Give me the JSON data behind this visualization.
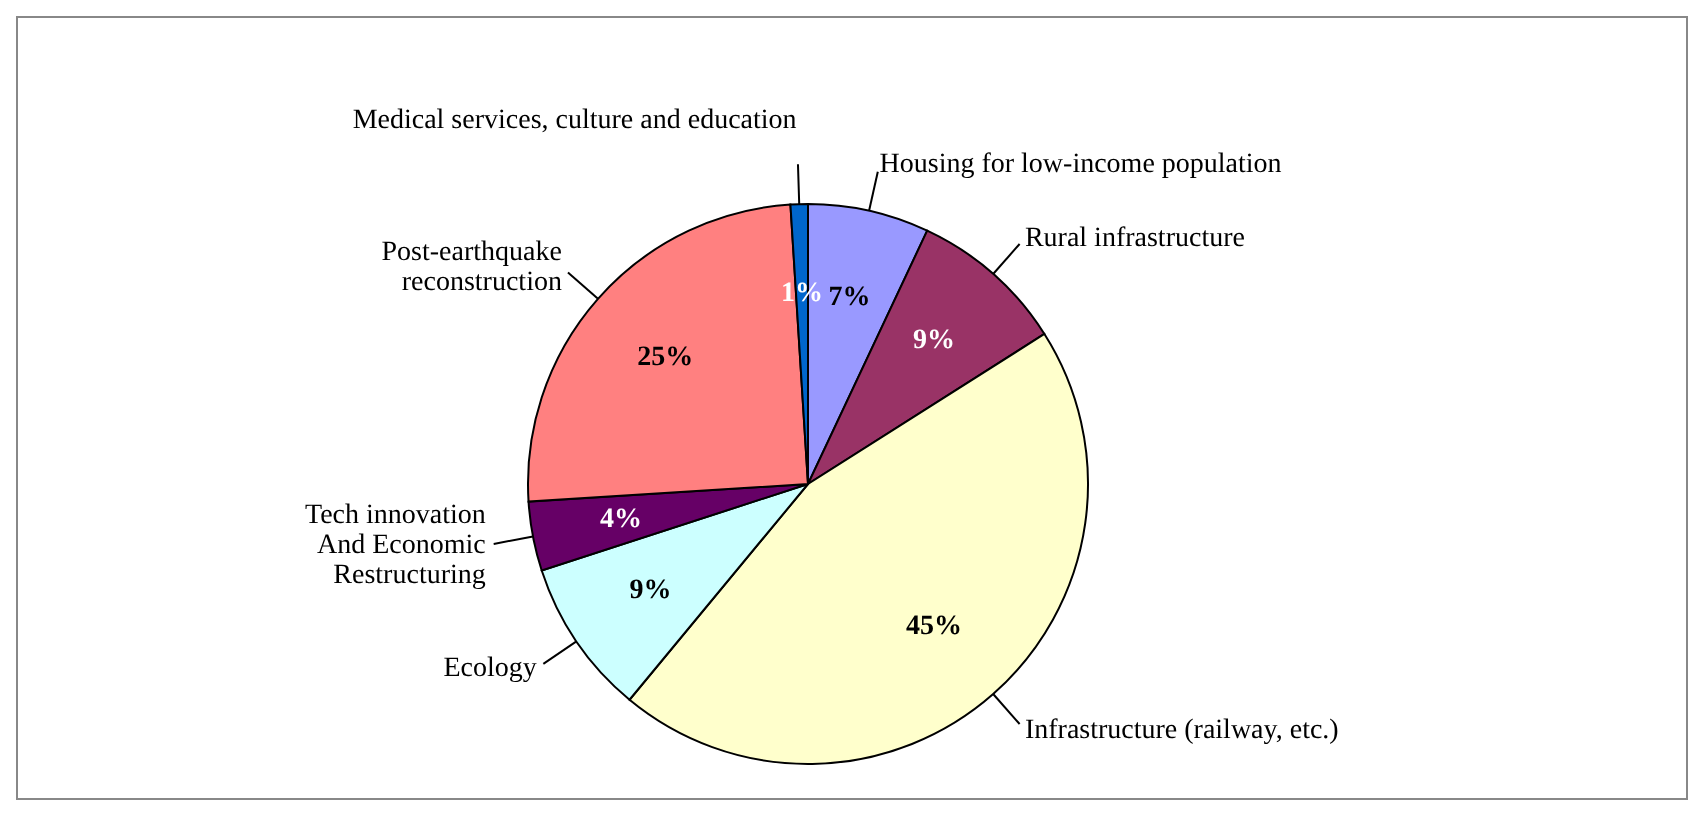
{
  "chart_data": {
    "type": "pie",
    "categories": [
      "Housing for low-income population",
      "Rural infrastructure",
      "Infrastructure (railway, etc.)",
      "Ecology",
      "Tech innovation And Economic Restructuring",
      "Post-earthquake reconstruction",
      "Medical services, culture and education"
    ],
    "values": [
      7,
      9,
      45,
      9,
      4,
      25,
      1
    ],
    "colors": [
      "#9999ff",
      "#993366",
      "#ffffcc",
      "#ccffff",
      "#660066",
      "#ff8080",
      "#0066cc"
    ],
    "value_labels": [
      "7%",
      "9%",
      "45%",
      "9%",
      "4%",
      "25%",
      "1%"
    ]
  }
}
